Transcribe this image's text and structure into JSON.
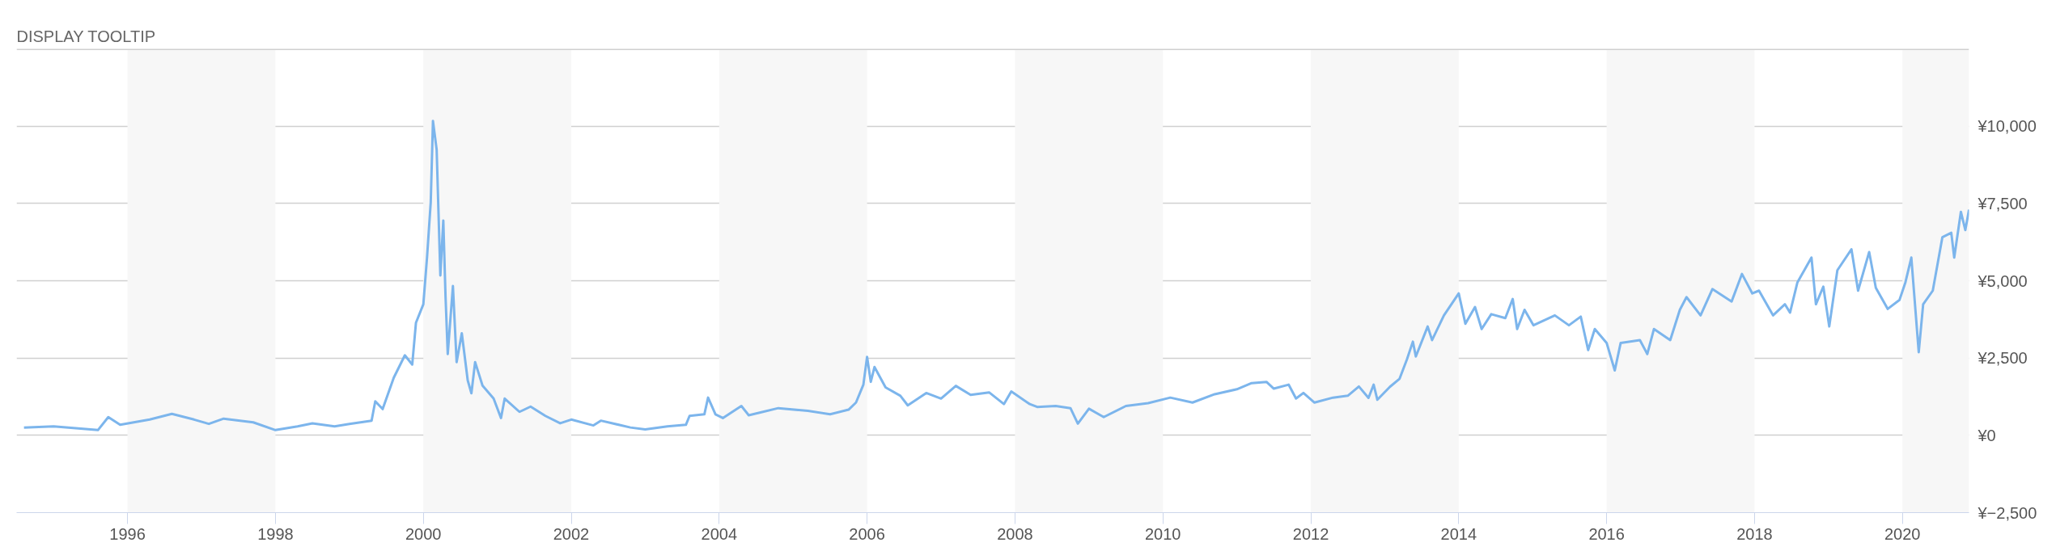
{
  "chart_data": {
    "type": "line",
    "annotations": [
      "DISPLAY TOOLTIP"
    ],
    "x": [
      1994.6,
      1995.0,
      1995.6,
      1995.74,
      1995.9,
      1996.3,
      1996.6,
      1996.9,
      1997.1,
      1997.3,
      1997.7,
      1998.0,
      1998.3,
      1998.5,
      1998.8,
      1999.0,
      1999.3,
      1999.35,
      1999.45,
      1999.6,
      1999.75,
      1999.85,
      1999.9,
      2000.0,
      2000.05,
      2000.1,
      2000.13,
      2000.18,
      2000.23,
      2000.27,
      2000.3,
      2000.33,
      2000.4,
      2000.45,
      2000.52,
      2000.6,
      2000.65,
      2000.7,
      2000.8,
      2000.95,
      2001.05,
      2001.1,
      2001.3,
      2001.45,
      2001.65,
      2001.85,
      2002.0,
      2002.3,
      2002.4,
      2002.8,
      2003.0,
      2003.3,
      2003.55,
      2003.6,
      2003.8,
      2003.85,
      2003.95,
      2004.05,
      2004.3,
      2004.4,
      2004.8,
      2005.2,
      2005.5,
      2005.75,
      2005.85,
      2005.95,
      2006.0,
      2006.05,
      2006.1,
      2006.25,
      2006.45,
      2006.55,
      2006.8,
      2007.0,
      2007.2,
      2007.4,
      2007.65,
      2007.85,
      2007.95,
      2008.2,
      2008.3,
      2008.55,
      2008.75,
      2008.85,
      2009.0,
      2009.2,
      2009.5,
      2009.8,
      2010.1,
      2010.4,
      2010.7,
      2011.0,
      2011.2,
      2011.4,
      2011.5,
      2011.7,
      2011.8,
      2011.9,
      2012.05,
      2012.3,
      2012.5,
      2012.65,
      2012.78,
      2012.85,
      2012.9,
      2013.07,
      2013.2,
      2013.3,
      2013.38,
      2013.42,
      2013.58,
      2013.64,
      2013.8,
      2014.0,
      2014.09,
      2014.22,
      2014.31,
      2014.44,
      2014.63,
      2014.73,
      2014.79,
      2014.89,
      2015.01,
      2015.3,
      2015.49,
      2015.65,
      2015.75,
      2015.84,
      2016.0,
      2016.11,
      2016.19,
      2016.45,
      2016.55,
      2016.64,
      2016.86,
      2016.99,
      2017.08,
      2017.27,
      2017.43,
      2017.69,
      2017.83,
      2017.97,
      2018.06,
      2018.25,
      2018.41,
      2018.48,
      2018.58,
      2018.77,
      2018.83,
      2018.93,
      2019.01,
      2019.12,
      2019.31,
      2019.4,
      2019.55,
      2019.64,
      2019.8,
      2019.96,
      2020.04,
      2020.12,
      2020.22,
      2020.28,
      2020.41,
      2020.54,
      2020.66,
      2020.7,
      2020.79,
      2020.85,
      2020.9
    ],
    "series": [
      {
        "color": "#7cb5ec",
        "values": [
          250,
          290,
          170,
          590,
          340,
          510,
          695,
          510,
          370,
          540,
          420,
          170,
          290,
          390,
          290,
          370,
          475,
          1100,
          850,
          1865,
          2590,
          2290,
          3640,
          4240,
          5760,
          7540,
          10170,
          9240,
          5170,
          6950,
          4490,
          2630,
          4830,
          2370,
          3300,
          1780,
          1360,
          2370,
          1610,
          1190,
          560,
          1190,
          760,
          930,
          630,
          390,
          510,
          320,
          475,
          254,
          190,
          290,
          340,
          630,
          680,
          1220,
          680,
          560,
          950,
          650,
          880,
          790,
          680,
          830,
          1060,
          1640,
          2540,
          1730,
          2210,
          1550,
          1280,
          970,
          1370,
          1190,
          1600,
          1310,
          1390,
          1010,
          1420,
          1010,
          920,
          950,
          880,
          380,
          860,
          590,
          950,
          1040,
          1220,
          1060,
          1330,
          1490,
          1690,
          1730,
          1510,
          1640,
          1190,
          1370,
          1060,
          1220,
          1280,
          1580,
          1210,
          1640,
          1150,
          1570,
          1830,
          2460,
          3030,
          2550,
          3520,
          3080,
          3880,
          4590,
          3610,
          4150,
          3440,
          3920,
          3790,
          4410,
          3440,
          4060,
          3560,
          3880,
          3560,
          3840,
          2760,
          3440,
          2990,
          2100,
          2990,
          3080,
          2630,
          3440,
          3080,
          4060,
          4470,
          3880,
          4730,
          4330,
          5220,
          4590,
          4680,
          3880,
          4240,
          3970,
          4950,
          5750,
          4240,
          4810,
          3520,
          5340,
          6020,
          4680,
          5930,
          4770,
          4090,
          4380,
          4950,
          5750,
          2690,
          4240,
          4680,
          6410,
          6550,
          5750,
          7230,
          6640,
          7300
        ]
      }
    ],
    "xlim": [
      1994.5,
      2020.9
    ],
    "xticks": [
      1996,
      1998,
      2000,
      2002,
      2004,
      2006,
      2008,
      2010,
      2012,
      2014,
      2016,
      2018,
      2020
    ],
    "ylim": [
      -2500,
      12500
    ],
    "yticks": [
      {
        "value": -2500,
        "label": "¥−2,500"
      },
      {
        "value": 0,
        "label": "¥0"
      },
      {
        "value": 2500,
        "label": "¥2,500"
      },
      {
        "value": 5000,
        "label": "¥5,000"
      },
      {
        "value": 7500,
        "label": "¥7,500"
      },
      {
        "value": 10000,
        "label": "¥10,000"
      },
      {
        "value": 12500,
        "label": null
      }
    ],
    "grid": "y",
    "marker": "none",
    "line_style": "solid",
    "bands": [
      {
        "axis": "x",
        "from": 1996,
        "to": 1998,
        "color": "#f7f7f7"
      },
      {
        "axis": "x",
        "from": 2000,
        "to": 2002,
        "color": "#f7f7f7"
      },
      {
        "axis": "x",
        "from": 2004,
        "to": 2006,
        "color": "#f7f7f7"
      },
      {
        "axis": "x",
        "from": 2008,
        "to": 2010,
        "color": "#f7f7f7"
      },
      {
        "axis": "x",
        "from": 2012,
        "to": 2014,
        "color": "#f7f7f7"
      },
      {
        "axis": "x",
        "from": 2016,
        "to": 2018,
        "color": "#f7f7f7"
      },
      {
        "axis": "x",
        "from": 2020,
        "to": 2020.9,
        "color": "#f7f7f7"
      }
    ]
  }
}
